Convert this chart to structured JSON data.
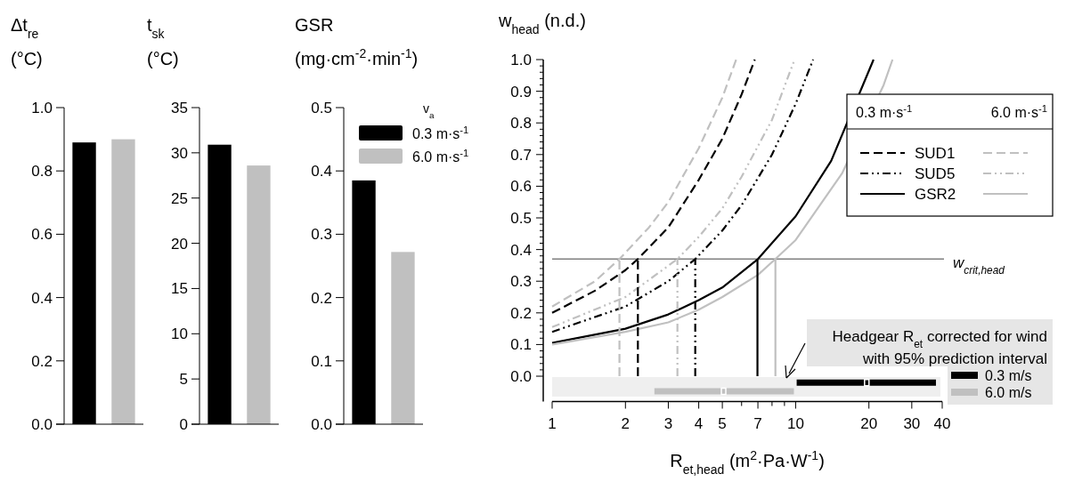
{
  "chart_data": [
    {
      "type": "bar",
      "ylabel": "Δt$_{re}$ (°C)",
      "categories": [
        null
      ],
      "series": [
        {
          "color": "#000000",
          "values": [
            0.89
          ]
        },
        {
          "color": "#c0c0c0",
          "values": [
            0.9
          ]
        }
      ],
      "ylim": [
        0,
        1
      ],
      "yticks": [
        {
          "value": 0,
          "label": "0.0"
        },
        {
          "value": 0.2,
          "label": "0.2"
        },
        {
          "value": 0.4,
          "label": "0.4"
        },
        {
          "value": 0.6,
          "label": "0.6"
        },
        {
          "value": 0.8,
          "label": "0.8"
        },
        {
          "value": 1,
          "label": "1.0"
        }
      ]
    },
    {
      "type": "bar",
      "ylabel": "t$_{sk}$ (°C)",
      "categories": [
        null
      ],
      "series": [
        {
          "color": "#000000",
          "values": [
            30.9
          ]
        },
        {
          "color": "#c0c0c0",
          "values": [
            28.6
          ]
        }
      ],
      "ylim": [
        0,
        35
      ],
      "yticks": [
        0,
        5,
        10,
        15,
        20,
        25,
        30,
        35
      ]
    },
    {
      "type": "bar",
      "ylabel": "GSR (mg·cm$^{-2}$·min$^{-1}$)",
      "categories": [
        null
      ],
      "legend_title": "v$_{a}$",
      "legend": "top right",
      "series": [
        {
          "name": "0.3 m·s$^{-1}$",
          "color": "#000000",
          "values": [
            0.385
          ]
        },
        {
          "name": "6.0 m·s$^{-1}$",
          "color": "#c0c0c0",
          "values": [
            0.272
          ]
        }
      ],
      "ylim": [
        0,
        0.5
      ],
      "yticks": [
        {
          "value": 0,
          "label": "0.0"
        },
        {
          "value": 0.1,
          "label": "0.1"
        },
        {
          "value": 0.2,
          "label": "0.2"
        },
        {
          "value": 0.3,
          "label": "0.3"
        },
        {
          "value": 0.4,
          "label": "0.4"
        },
        {
          "value": 0.5,
          "label": "0.5"
        }
      ]
    },
    {
      "type": "line",
      "ylabel": "w$_{head}$ (n.d.)",
      "xlabel": "R$_{et,head}$ (m$^{2}$·Pa·W$^{-1}$)",
      "log": "x",
      "legend": "right",
      "annotations": [
        "0.3 m·s$^{-1}$",
        "6.0 m·s$^{-1}$",
        "Headgear R$_{et}$ corrected for wind with 95% prediction interval"
      ],
      "ref_lines": [
        {
          "axis": "y",
          "value": 0.37,
          "label": "w$_{crit,head}$",
          "color": "#808080"
        }
      ],
      "xlim": [
        1,
        40
      ],
      "xticks": [
        1,
        2,
        3,
        4,
        5,
        {
          "value": 6,
          "label": null
        },
        7,
        {
          "value": 8,
          "label": null
        },
        {
          "value": 9,
          "label": null
        },
        10,
        20,
        30,
        40
      ],
      "ylim": [
        -0.08,
        1
      ],
      "yticks": [
        {
          "value": 0,
          "label": "0.0"
        },
        {
          "value": 0.02,
          "label": null
        },
        {
          "value": 0.04,
          "label": null
        },
        {
          "value": 0.06,
          "label": null
        },
        {
          "value": 0.08,
          "label": null
        },
        {
          "value": 0.1,
          "label": "0.1"
        },
        {
          "value": 0.12,
          "label": null
        },
        {
          "value": 0.14,
          "label": null
        },
        {
          "value": 0.16,
          "label": null
        },
        {
          "value": 0.18,
          "label": null
        },
        {
          "value": 0.2,
          "label": "0.2"
        },
        {
          "value": 0.22,
          "label": null
        },
        {
          "value": 0.24,
          "label": null
        },
        {
          "value": 0.26,
          "label": null
        },
        {
          "value": 0.28,
          "label": null
        },
        {
          "value": 0.3,
          "label": "0.3"
        },
        {
          "value": 0.32,
          "label": null
        },
        {
          "value": 0.34,
          "label": null
        },
        {
          "value": 0.36,
          "label": null
        },
        {
          "value": 0.38,
          "label": null
        },
        {
          "value": 0.4,
          "label": "0.4"
        },
        {
          "value": 0.42,
          "label": null
        },
        {
          "value": 0.44,
          "label": null
        },
        {
          "value": 0.46,
          "label": null
        },
        {
          "value": 0.48,
          "label": null
        },
        {
          "value": 0.5,
          "label": "0.5"
        },
        {
          "value": 0.52,
          "label": null
        },
        {
          "value": 0.54,
          "label": null
        },
        {
          "value": 0.56,
          "label": null
        },
        {
          "value": 0.58,
          "label": null
        },
        {
          "value": 0.6,
          "label": "0.6"
        },
        {
          "value": 0.62,
          "label": null
        },
        {
          "value": 0.64,
          "label": null
        },
        {
          "value": 0.66,
          "label": null
        },
        {
          "value": 0.68,
          "label": null
        },
        {
          "value": 0.7,
          "label": "0.7"
        },
        {
          "value": 0.72,
          "label": null
        },
        {
          "value": 0.74,
          "label": null
        },
        {
          "value": 0.76,
          "label": null
        },
        {
          "value": 0.78,
          "label": null
        },
        {
          "value": 0.8,
          "label": "0.8"
        },
        {
          "value": 0.82,
          "label": null
        },
        {
          "value": 0.84,
          "label": null
        },
        {
          "value": 0.86,
          "label": null
        },
        {
          "value": 0.88,
          "label": null
        },
        {
          "value": 0.9,
          "label": "0.9"
        },
        {
          "value": 0.92,
          "label": null
        },
        {
          "value": 0.94,
          "label": null
        },
        {
          "value": 0.96,
          "label": null
        },
        {
          "value": 0.98,
          "label": null
        },
        {
          "value": 1,
          "label": "1.0"
        }
      ],
      "series": [
        {
          "name": "SUD1",
          "color": "#000000",
          "line_style": "dashed",
          "x": [
            1,
            1.5,
            2,
            2.25,
            3,
            4,
            5,
            6,
            6.8
          ],
          "values": [
            0.2,
            0.27,
            0.335,
            0.37,
            0.47,
            0.62,
            0.75,
            0.89,
            1.0
          ]
        },
        {
          "name": "SUD5",
          "color": "#000000",
          "line_style": "dashdot",
          "x": [
            1,
            2,
            3,
            3.87,
            5,
            6,
            8,
            10,
            11.8
          ],
          "values": [
            0.14,
            0.22,
            0.3,
            0.37,
            0.46,
            0.54,
            0.7,
            0.86,
            1.0
          ]
        },
        {
          "name": "GSR2",
          "color": "#000000",
          "line_style": "solid",
          "x": [
            1,
            2,
            3,
            4,
            5,
            7,
            10,
            14,
            20.9
          ],
          "values": [
            0.105,
            0.15,
            0.195,
            0.24,
            0.28,
            0.37,
            0.505,
            0.68,
            1.0
          ]
        },
        {
          "color": "#c0c0c0",
          "line_style": "dashed",
          "x": [
            1,
            1.5,
            1.89,
            2.5,
            3,
            4,
            5,
            5.7
          ],
          "values": [
            0.22,
            0.3,
            0.37,
            0.47,
            0.55,
            0.72,
            0.88,
            1.0
          ]
        },
        {
          "color": "#c0c0c0",
          "line_style": "dashdot",
          "x": [
            1,
            2,
            3.27,
            4,
            5,
            6,
            8,
            9.9
          ],
          "values": [
            0.155,
            0.25,
            0.37,
            0.44,
            0.53,
            0.63,
            0.81,
            1.0
          ]
        },
        {
          "color": "#c0c0c0",
          "line_style": "solid",
          "x": [
            1,
            2,
            3,
            4,
            5,
            7,
            8.26,
            10,
            15.5,
            23,
            25
          ],
          "values": [
            0.1,
            0.14,
            0.17,
            0.21,
            0.25,
            0.32,
            0.37,
            0.43,
            0.64,
            0.92,
            1.0
          ]
        },
        {
          "color": "#000000",
          "line_style": "dashed",
          "x": [
            2.25,
            2.25
          ],
          "values": [
            0,
            0.37
          ]
        },
        {
          "color": "#000000",
          "line_style": "dashdot",
          "x": [
            3.87,
            3.87
          ],
          "values": [
            0,
            0.37
          ]
        },
        {
          "color": "#000000",
          "line_style": "solid",
          "x": [
            6.97,
            6.97
          ],
          "values": [
            0,
            0.37
          ]
        },
        {
          "color": "#c0c0c0",
          "line_style": "dashed",
          "x": [
            1.89,
            1.89
          ],
          "values": [
            0,
            0.37
          ]
        },
        {
          "color": "#c0c0c0",
          "line_style": "dashdot",
          "x": [
            3.27,
            3.27
          ],
          "values": [
            0,
            0.37
          ]
        },
        {
          "color": "#c0c0c0",
          "line_style": "solid",
          "x": [
            8.26,
            8.26
          ],
          "values": [
            0,
            0.37
          ]
        },
        {
          "type": "scatter",
          "name": "0.3 m/s",
          "color": "#000000",
          "x": [
            19.6
          ],
          "values": [
            -0.02
          ],
          "xerrors": [
            [
              10.1,
              37.7
            ]
          ]
        },
        {
          "type": "scatter",
          "name": "6.0 m/s",
          "color": "#c0c0c0",
          "x": [
            5.06
          ],
          "values": [
            -0.048
          ],
          "xerrors": [
            [
              2.63,
              9.84
            ]
          ]
        }
      ]
    }
  ]
}
